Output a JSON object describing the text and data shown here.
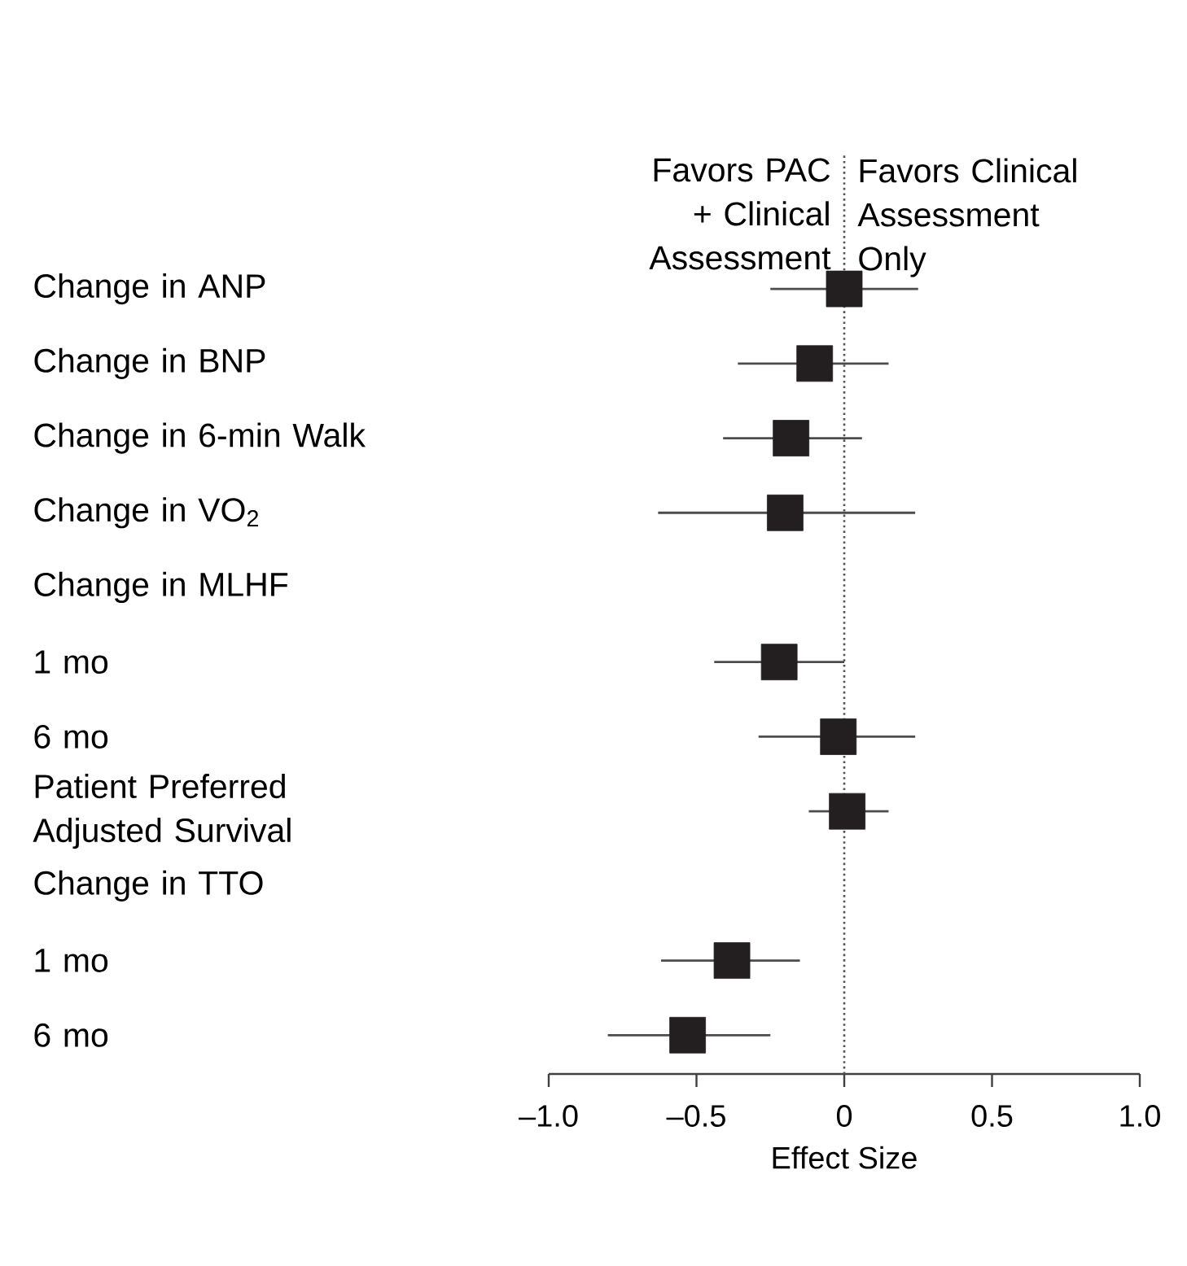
{
  "chart_data": {
    "type": "scatter",
    "orientation": "horizontal",
    "categories": [
      "Change in ANP",
      "Change in BNP",
      "Change in 6-min Walk",
      "Change in VO$_{2}$",
      "Change in MLHF",
      "1 mo",
      "6 mo",
      "Patient Preferred Adjusted Survival",
      "Change in TTO",
      "1 mo",
      "6 mo"
    ],
    "values": [
      0.0,
      -0.1,
      -0.18,
      -0.2,
      null,
      -0.22,
      -0.02,
      0.01,
      null,
      -0.38,
      -0.53
    ],
    "errors": [
      [
        -0.25,
        0.25
      ],
      [
        -0.36,
        0.15
      ],
      [
        -0.41,
        0.06
      ],
      [
        -0.63,
        0.24
      ],
      null,
      [
        -0.44,
        0.0
      ],
      [
        -0.29,
        0.24
      ],
      [
        -0.12,
        0.15
      ],
      null,
      [
        -0.62,
        -0.15
      ],
      [
        -0.8,
        -0.25
      ]
    ],
    "color": "#231f20",
    "marker": "square",
    "xlabel": "Effect Size",
    "xlim": [
      -1.0,
      1.0
    ],
    "xticks": [
      {
        "value": -1.0,
        "label": "–1.0"
      },
      {
        "value": -0.5,
        "label": "–0.5"
      },
      0,
      0.5,
      {
        "value": 1.0,
        "label": "1.0"
      }
    ],
    "ref_lines": [
      {
        "axis": "x",
        "value": 0,
        "line_style": "dotted",
        "color": "#555555"
      }
    ],
    "annotations": [
      {
        "text": "Favors PAC + Clinical Assessment",
        "x": 0
      },
      {
        "text": "Favors Clinical Assessment Only",
        "x": 0
      }
    ]
  }
}
